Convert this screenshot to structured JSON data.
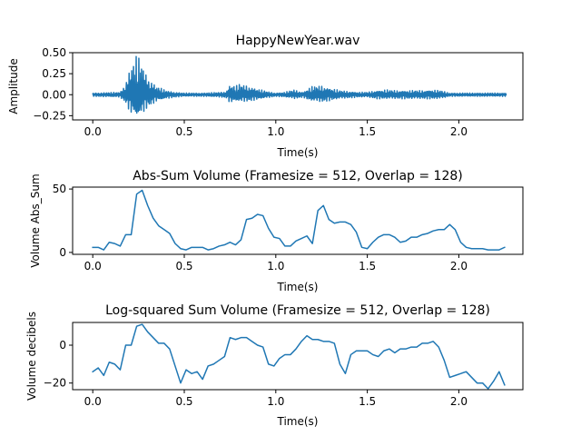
{
  "chart_data": [
    {
      "type": "line",
      "title": "HappyNewYear.wav",
      "xlabel": "Time(s)",
      "ylabel": "Amplitude",
      "xlim": [
        -0.11,
        2.35
      ],
      "ylim": [
        -0.3,
        0.5
      ],
      "xticks": [
        0.0,
        0.5,
        1.0,
        1.5,
        2.0
      ],
      "xtick_labels": [
        "0.0",
        "0.5",
        "1.0",
        "1.5",
        "2.0"
      ],
      "yticks": [
        -0.25,
        0.0,
        0.25,
        0.5
      ],
      "ytick_labels": [
        "−0.25",
        "0.00",
        "0.25",
        "0.50"
      ],
      "grid": false,
      "color": "#1f77b4",
      "envelope": {
        "t": [
          0.0,
          0.15,
          0.18,
          0.2,
          0.22,
          0.24,
          0.26,
          0.3,
          0.35,
          0.4,
          0.45,
          0.5,
          0.6,
          0.7,
          0.73,
          0.75,
          0.78,
          0.8,
          0.85,
          0.9,
          0.95,
          1.0,
          1.05,
          1.1,
          1.15,
          1.18,
          1.2,
          1.25,
          1.3,
          1.35,
          1.4,
          1.45,
          1.5,
          1.55,
          1.6,
          1.65,
          1.7,
          1.75,
          1.8,
          1.85,
          1.9,
          1.95,
          2.0,
          2.05,
          2.1,
          2.15,
          2.2,
          2.26
        ],
        "upper": [
          0.02,
          0.03,
          0.15,
          0.3,
          0.4,
          0.47,
          0.44,
          0.22,
          0.1,
          0.05,
          0.03,
          0.02,
          0.02,
          0.03,
          0.04,
          0.13,
          0.1,
          0.13,
          0.11,
          0.07,
          0.04,
          0.02,
          0.03,
          0.06,
          0.03,
          0.08,
          0.1,
          0.11,
          0.08,
          0.05,
          0.04,
          0.03,
          0.03,
          0.05,
          0.06,
          0.05,
          0.05,
          0.05,
          0.05,
          0.06,
          0.05,
          0.02,
          0.02,
          0.02,
          0.02,
          0.02,
          0.02,
          0.02
        ],
        "lower": [
          -0.02,
          -0.03,
          -0.1,
          -0.2,
          -0.27,
          -0.3,
          -0.27,
          -0.15,
          -0.08,
          -0.05,
          -0.03,
          -0.02,
          -0.02,
          -0.03,
          -0.04,
          -0.1,
          -0.08,
          -0.09,
          -0.08,
          -0.06,
          -0.04,
          -0.02,
          -0.03,
          -0.05,
          -0.03,
          -0.07,
          -0.08,
          -0.09,
          -0.07,
          -0.05,
          -0.04,
          -0.03,
          -0.03,
          -0.05,
          -0.05,
          -0.05,
          -0.05,
          -0.05,
          -0.05,
          -0.05,
          -0.05,
          -0.02,
          -0.02,
          -0.02,
          -0.02,
          -0.02,
          -0.02,
          -0.02
        ]
      }
    },
    {
      "type": "line",
      "title": "Abs-Sum Volume (Framesize = 512, Overlap = 128)",
      "xlabel": "Time(s)",
      "ylabel": "Volume Abs_Sum",
      "xlim": [
        -0.11,
        2.35
      ],
      "ylim": [
        -1.5,
        51.5
      ],
      "xticks": [
        0.0,
        0.5,
        1.0,
        1.5,
        2.0
      ],
      "xtick_labels": [
        "0.0",
        "0.5",
        "1.0",
        "1.5",
        "2.0"
      ],
      "yticks": [
        0,
        50
      ],
      "ytick_labels": [
        "0",
        "50"
      ],
      "grid": false,
      "color": "#1f77b4",
      "x": [
        0.0,
        0.03,
        0.06,
        0.09,
        0.12,
        0.15,
        0.18,
        0.21,
        0.24,
        0.27,
        0.3,
        0.33,
        0.36,
        0.39,
        0.42,
        0.45,
        0.48,
        0.51,
        0.54,
        0.57,
        0.6,
        0.63,
        0.66,
        0.69,
        0.72,
        0.75,
        0.78,
        0.81,
        0.84,
        0.87,
        0.9,
        0.93,
        0.96,
        0.99,
        1.02,
        1.05,
        1.08,
        1.11,
        1.14,
        1.17,
        1.2,
        1.23,
        1.26,
        1.29,
        1.32,
        1.35,
        1.38,
        1.41,
        1.44,
        1.47,
        1.5,
        1.53,
        1.56,
        1.59,
        1.62,
        1.65,
        1.68,
        1.71,
        1.74,
        1.77,
        1.8,
        1.83,
        1.86,
        1.89,
        1.92,
        1.95,
        1.98,
        2.01,
        2.04,
        2.07,
        2.1,
        2.13,
        2.16,
        2.19,
        2.22,
        2.25
      ],
      "y": [
        4,
        4,
        2,
        8,
        7,
        5,
        14,
        14,
        46,
        49,
        37,
        27,
        21,
        18,
        15,
        7,
        3,
        2,
        4,
        4,
        4,
        2,
        3,
        5,
        6,
        8,
        6,
        10,
        26,
        27,
        30,
        29,
        19,
        12,
        11,
        5,
        5,
        9,
        11,
        13,
        7,
        33,
        37,
        26,
        23,
        24,
        24,
        22,
        16,
        4,
        3,
        8,
        12,
        14,
        14,
        12,
        8,
        9,
        12,
        12,
        14,
        15,
        17,
        18,
        18,
        22,
        18,
        8,
        4,
        3,
        3,
        3,
        2,
        2,
        2,
        4
      ]
    },
    {
      "type": "line",
      "title": "Log-squared Sum Volume (Framesize = 512, Overlap = 128)",
      "xlabel": "Time(s)",
      "ylabel": "Volume decibels",
      "xlim": [
        -0.11,
        2.35
      ],
      "ylim": [
        -23.5,
        12
      ],
      "xticks": [
        0.0,
        0.5,
        1.0,
        1.5,
        2.0
      ],
      "xtick_labels": [
        "0.0",
        "0.5",
        "1.0",
        "1.5",
        "2.0"
      ],
      "yticks": [
        -20,
        0
      ],
      "ytick_labels": [
        "−20",
        "0"
      ],
      "grid": false,
      "color": "#1f77b4",
      "x": [
        0.0,
        0.03,
        0.06,
        0.09,
        0.12,
        0.15,
        0.18,
        0.21,
        0.24,
        0.27,
        0.3,
        0.33,
        0.36,
        0.39,
        0.42,
        0.45,
        0.48,
        0.51,
        0.54,
        0.57,
        0.6,
        0.63,
        0.66,
        0.69,
        0.72,
        0.75,
        0.78,
        0.81,
        0.84,
        0.87,
        0.9,
        0.93,
        0.96,
        0.99,
        1.02,
        1.05,
        1.08,
        1.11,
        1.14,
        1.17,
        1.2,
        1.23,
        1.26,
        1.29,
        1.32,
        1.35,
        1.38,
        1.41,
        1.44,
        1.47,
        1.5,
        1.53,
        1.56,
        1.59,
        1.62,
        1.65,
        1.68,
        1.71,
        1.74,
        1.77,
        1.8,
        1.83,
        1.86,
        1.89,
        1.92,
        1.95,
        1.98,
        2.01,
        2.04,
        2.07,
        2.1,
        2.13,
        2.16,
        2.19,
        2.22,
        2.25
      ],
      "y": [
        -14,
        -12,
        -16,
        -9,
        -10,
        -13,
        0,
        0,
        10,
        11,
        7,
        4,
        1,
        1,
        -2,
        -11,
        -20,
        -13,
        -15,
        -14,
        -18,
        -11,
        -10,
        -8,
        -6,
        4,
        3,
        4,
        4,
        2,
        0,
        -1,
        -10,
        -11,
        -7,
        -5,
        -5,
        -2,
        2,
        5,
        3,
        3,
        2,
        2,
        1,
        -10,
        -15,
        -5,
        -3,
        -3,
        -3,
        -5,
        -6,
        -3,
        -2,
        -4,
        -2,
        -2,
        -1,
        -1,
        1,
        1,
        2,
        -1,
        -8,
        -17,
        -16,
        -15,
        -14,
        -17,
        -20,
        -20,
        -23,
        -19,
        -14,
        -21
      ]
    }
  ]
}
